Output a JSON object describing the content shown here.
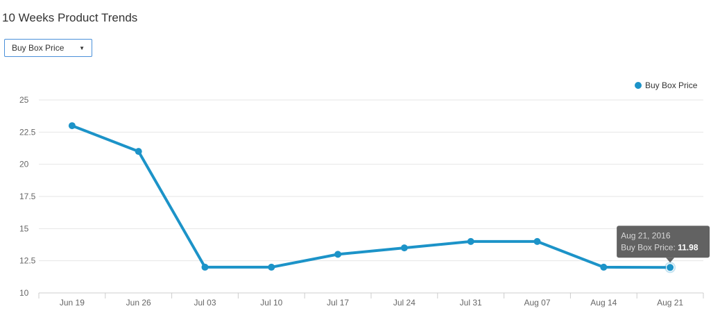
{
  "header": {
    "title": "10 Weeks Product Trends"
  },
  "metric_selector": {
    "selected": "Buy Box Price"
  },
  "colors": {
    "series": "#1c93c8",
    "grid": "#e6e6e6",
    "axis_text": "#666666",
    "tooltip_bg": "#555555"
  },
  "tooltip": {
    "date": "Aug 21, 2016",
    "label": "Buy Box Price: ",
    "value": "11.98"
  },
  "chart_data": {
    "type": "line",
    "categories": [
      "Jun 19",
      "Jun 26",
      "Jul 03",
      "Jul 10",
      "Jul 17",
      "Jul 24",
      "Jul 31",
      "Aug 07",
      "Aug 14",
      "Aug 21"
    ],
    "series": [
      {
        "name": "Buy Box Price",
        "values": [
          23,
          21,
          12,
          12,
          13,
          13.5,
          14,
          14,
          12,
          11.98
        ]
      }
    ],
    "ylim": [
      10,
      25
    ],
    "yticks": [
      "25",
      "22.5",
      "20",
      "17.5",
      "15",
      "12.5",
      "10"
    ],
    "legend": "top-right",
    "grid": true,
    "highlighted_index": 9
  }
}
